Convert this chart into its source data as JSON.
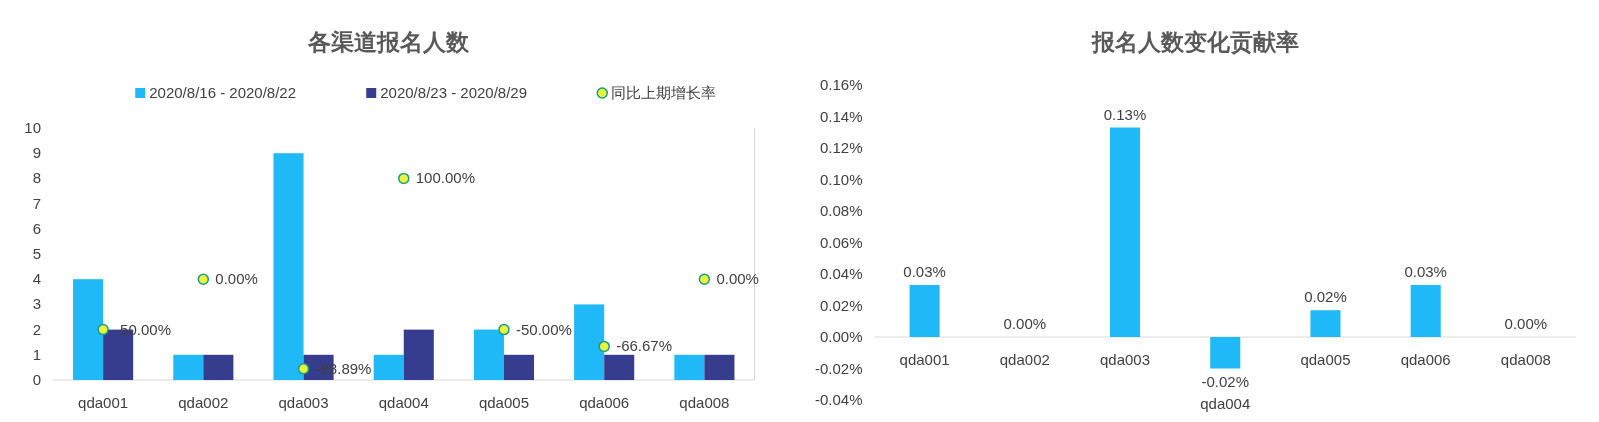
{
  "chart_data": [
    {
      "type": "bar",
      "title": "各渠道报名人数",
      "categories": [
        "qda001",
        "qda002",
        "qda003",
        "qda004",
        "qda005",
        "qda006",
        "qda008"
      ],
      "series": [
        {
          "name": "2020/8/16 - 2020/8/22",
          "color": "#1fb9f7",
          "values": [
            4,
            1,
            9,
            1,
            2,
            3,
            1
          ]
        },
        {
          "name": "2020/8/23 - 2020/8/29",
          "color": "#363c8e",
          "values": [
            2,
            1,
            1,
            2,
            1,
            1,
            1
          ]
        },
        {
          "name": "同比上期增长率",
          "type": "scatter",
          "axis": "y2",
          "color": "#e8f53a",
          "values": [
            -50,
            0,
            -88.89,
            100,
            -50,
            -66.67,
            0
          ],
          "value_labels": [
            "-50.00%",
            "0.00%",
            "-88.89%",
            "100.00%",
            "-50.00%",
            "-66.67%",
            "0.00%"
          ]
        }
      ],
      "ylim": [
        0,
        10
      ],
      "yticks": [
        0,
        1,
        2,
        3,
        4,
        5,
        6,
        7,
        8,
        9,
        10
      ],
      "y2lim": [
        -100,
        150
      ],
      "legend": "top",
      "marker": "circle"
    },
    {
      "type": "bar",
      "title": "报名人数变化贡献率",
      "categories": [
        "qda001",
        "qda002",
        "qda003",
        "qda004",
        "qda005",
        "qda006",
        "qda008"
      ],
      "color": "#1fb9f7",
      "values": [
        0.033,
        0,
        0.133,
        -0.02,
        0.017,
        0.033,
        0
      ],
      "value_labels": [
        "0.03%",
        "0.00%",
        "0.13%",
        "-0.02%",
        "0.02%",
        "0.03%",
        "0.00%"
      ],
      "ylim": [
        -0.04,
        0.16
      ],
      "yticks": [
        {
          "value": -0.04,
          "label": "-0.04%"
        },
        {
          "value": -0.02,
          "label": "-0.02%"
        },
        {
          "value": 0,
          "label": "0.00%"
        },
        {
          "value": 0.02,
          "label": "0.02%"
        },
        {
          "value": 0.04,
          "label": "0.04%"
        },
        {
          "value": 0.06,
          "label": "0.06%"
        },
        {
          "value": 0.08,
          "label": "0.08%"
        },
        {
          "value": 0.1,
          "label": "0.10%"
        },
        {
          "value": 0.12,
          "label": "0.12%"
        },
        {
          "value": 0.14,
          "label": "0.14%"
        },
        {
          "value": 0.16,
          "label": "0.16%"
        }
      ]
    }
  ]
}
